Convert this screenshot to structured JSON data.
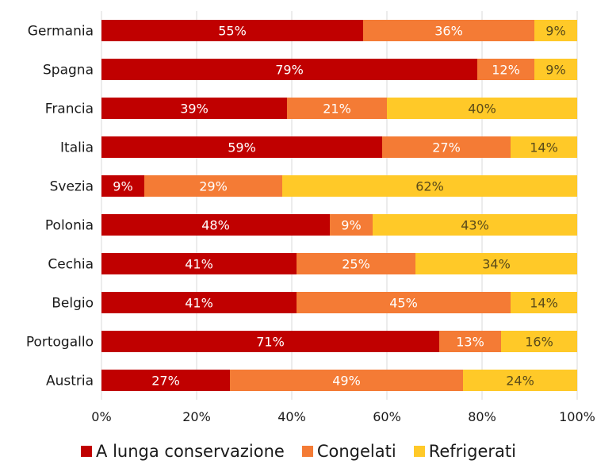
{
  "chart_data": {
    "type": "bar",
    "orientation": "horizontal",
    "stacked": true,
    "categories": [
      "Germania",
      "Spagna",
      "Francia",
      "Italia",
      "Svezia",
      "Polonia",
      "Cechia",
      "Belgio",
      "Portogallo",
      "Austria"
    ],
    "series": [
      {
        "name": "A lunga conservazione",
        "color": "#c00000",
        "label_color": "#ffffff",
        "values": [
          55,
          79,
          39,
          59,
          9,
          48,
          41,
          41,
          71,
          27
        ],
        "labels": [
          "55%",
          "79%",
          "39%",
          "59%",
          "9%",
          "48%",
          "41%",
          "41%",
          "71%",
          "27%"
        ]
      },
      {
        "name": "Congelati",
        "color": "#f47b35",
        "label_color": "#ffffff",
        "values": [
          36,
          12,
          21,
          27,
          29,
          9,
          25,
          45,
          13,
          49
        ],
        "labels": [
          "36%",
          "12%",
          "21%",
          "27%",
          "29%",
          "9%",
          "25%",
          "45%",
          "13%",
          "49%"
        ]
      },
      {
        "name": "Refrigerati",
        "color": "#ffc928",
        "label_color": "#5a4a1a",
        "values": [
          9,
          9,
          40,
          14,
          62,
          43,
          34,
          14,
          16,
          24
        ],
        "labels": [
          "9%",
          "9%",
          "40%",
          "14%",
          "62%",
          "43%",
          "34%",
          "14%",
          "16%",
          "24%"
        ]
      }
    ],
    "xlim": [
      0,
      100
    ],
    "xticks": [
      0,
      20,
      40,
      60,
      80,
      100
    ],
    "xtick_labels": [
      "0%",
      "20%",
      "40%",
      "60%",
      "80%",
      "100%"
    ],
    "grid": true,
    "legend_position": "bottom"
  }
}
